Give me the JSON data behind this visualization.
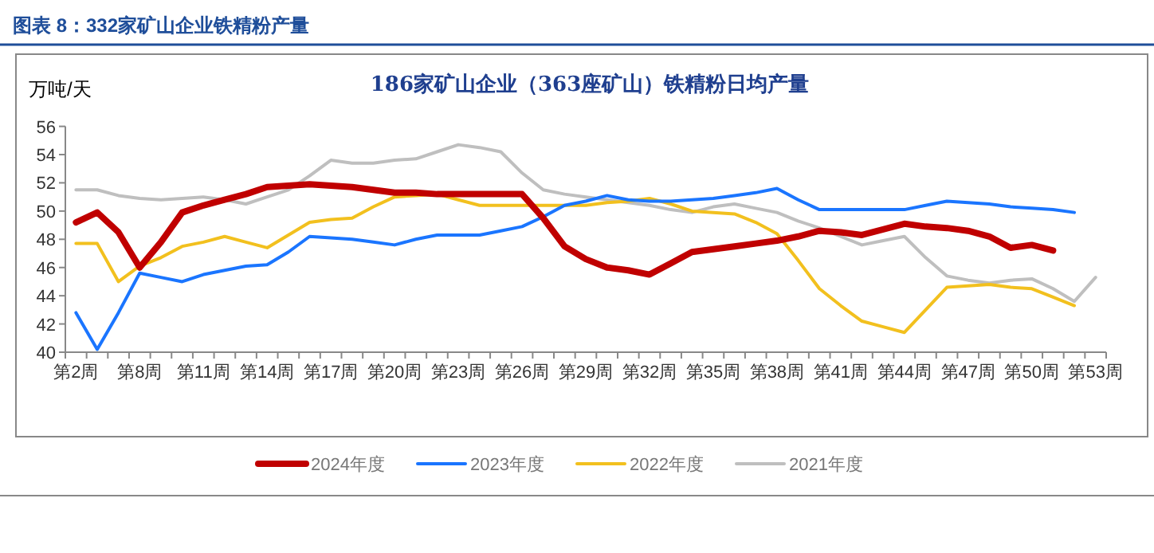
{
  "chart_data": {
    "type": "line",
    "title": "图表 8：332家矿山企业铁精粉产量",
    "subtitle": "186家矿山企业（363座矿山）铁精粉日均产量",
    "ylabel": "万吨/天",
    "categories": [
      "第2周",
      null,
      null,
      "第8周",
      null,
      null,
      "第11周",
      null,
      null,
      "第14周",
      null,
      null,
      "第17周",
      null,
      null,
      "第20周",
      null,
      null,
      "第23周",
      null,
      null,
      "第26周",
      null,
      null,
      "第29周",
      null,
      null,
      "第32周",
      null,
      null,
      "第35周",
      null,
      null,
      "第38周",
      null,
      null,
      "第41周",
      null,
      null,
      "第44周",
      null,
      null,
      "第47周",
      null,
      null,
      "第50周",
      null,
      null,
      "第53周"
    ],
    "series": [
      {
        "name": "2024年度",
        "color": "#c00000",
        "values": [
          49.2,
          49.9,
          48.5,
          46.0,
          47.8,
          49.9,
          50.4,
          50.8,
          51.2,
          51.7,
          51.8,
          51.9,
          51.8,
          51.7,
          51.5,
          51.3,
          51.3,
          51.2,
          51.2,
          51.2,
          51.2,
          51.2,
          49.5,
          47.5,
          46.6,
          46.0,
          45.8,
          45.5,
          46.3,
          47.1,
          47.3,
          47.5,
          47.7,
          47.9,
          48.2,
          48.6,
          48.5,
          48.3,
          48.7,
          49.1,
          48.9,
          48.8,
          48.6,
          48.2,
          47.4,
          47.6,
          47.2,
          null,
          null
        ]
      },
      {
        "name": "2023年度",
        "color": "#1a75ff",
        "values": [
          42.8,
          40.2,
          42.8,
          45.6,
          45.3,
          45.0,
          45.5,
          45.8,
          46.1,
          46.2,
          47.1,
          48.2,
          48.1,
          48.0,
          47.8,
          47.6,
          48.0,
          48.3,
          48.3,
          48.3,
          48.6,
          48.9,
          49.6,
          50.4,
          50.7,
          51.1,
          50.8,
          50.7,
          50.7,
          50.8,
          50.9,
          51.1,
          51.3,
          51.6,
          50.8,
          50.1,
          50.1,
          50.1,
          50.1,
          50.1,
          50.4,
          50.7,
          50.6,
          50.5,
          50.3,
          50.2,
          50.1,
          49.9,
          null
        ]
      },
      {
        "name": "2022年度",
        "color": "#f2c01e",
        "values": [
          47.7,
          47.7,
          45.0,
          46.1,
          46.7,
          47.5,
          47.8,
          48.2,
          47.8,
          47.4,
          48.3,
          49.2,
          49.4,
          49.5,
          50.3,
          51.0,
          51.1,
          51.2,
          50.8,
          50.4,
          50.4,
          50.4,
          50.4,
          50.4,
          50.4,
          50.6,
          50.7,
          50.9,
          50.5,
          50.0,
          49.9,
          49.8,
          49.2,
          48.4,
          46.5,
          44.5,
          43.3,
          42.2,
          41.8,
          41.4,
          43.0,
          44.6,
          44.7,
          44.8,
          44.6,
          44.5,
          43.9,
          43.3,
          null
        ]
      },
      {
        "name": "2021年度",
        "color": "#bfbfbf",
        "values": [
          51.5,
          51.5,
          51.1,
          50.9,
          50.8,
          50.9,
          51.0,
          50.8,
          50.5,
          51.0,
          51.5,
          52.5,
          53.6,
          53.4,
          53.4,
          53.6,
          53.7,
          54.2,
          54.7,
          54.5,
          54.2,
          52.7,
          51.5,
          51.2,
          51.0,
          50.8,
          50.6,
          50.4,
          50.1,
          49.9,
          50.3,
          50.5,
          50.2,
          49.9,
          49.3,
          48.8,
          48.2,
          47.6,
          47.9,
          48.2,
          46.7,
          45.4,
          45.1,
          44.9,
          45.1,
          45.2,
          44.5,
          43.6,
          45.3
        ]
      }
    ],
    "ylim": [
      40,
      56
    ],
    "yticks": [
      40,
      42,
      44,
      46,
      48,
      50,
      52,
      54,
      56
    ],
    "legend": "bottom"
  }
}
